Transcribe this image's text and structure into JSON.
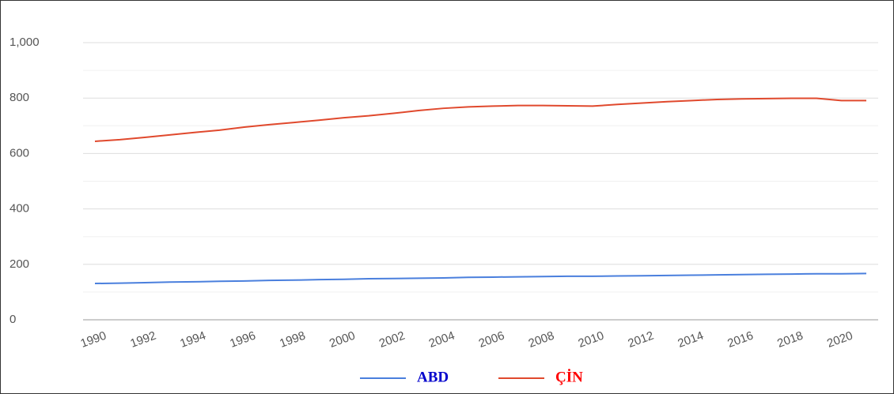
{
  "chart_data": {
    "type": "line",
    "x": [
      1990,
      1991,
      1992,
      1993,
      1994,
      1995,
      1996,
      1997,
      1998,
      1999,
      2000,
      2001,
      2002,
      2003,
      2004,
      2005,
      2006,
      2007,
      2008,
      2009,
      2010,
      2011,
      2012,
      2013,
      2014,
      2015,
      2016,
      2017,
      2018,
      2019,
      2020,
      2021
    ],
    "series": [
      {
        "name": "ABD",
        "color": "#4a7fdd",
        "label_color": "#0000cc",
        "values": [
          131,
          132,
          134,
          136,
          137,
          139,
          140,
          142,
          143,
          145,
          146,
          148,
          149,
          150,
          151,
          153,
          154,
          155,
          156,
          157,
          157,
          158,
          159,
          160,
          161,
          162,
          163,
          164,
          165,
          166,
          166,
          167
        ]
      },
      {
        "name": "ÇİN",
        "color": "#e0492d",
        "label_color": "#ff0000",
        "values": [
          644,
          650,
          658,
          667,
          676,
          684,
          695,
          704,
          712,
          720,
          729,
          736,
          745,
          755,
          763,
          768,
          771,
          773,
          773,
          772,
          771,
          777,
          782,
          787,
          791,
          795,
          797,
          798,
          799,
          799,
          791,
          791
        ]
      }
    ],
    "xlim": [
      1990,
      2021
    ],
    "xticks": [
      1990,
      1992,
      1994,
      1996,
      1998,
      2000,
      2002,
      2004,
      2006,
      2008,
      2010,
      2012,
      2014,
      2016,
      2018,
      2020
    ],
    "ylim": [
      0,
      1000
    ],
    "yticks": [
      0,
      200,
      400,
      600,
      800,
      {
        "value": 1000,
        "label": "1,000"
      }
    ],
    "minor_yticks": [
      100,
      300,
      500,
      700,
      900
    ],
    "grid": true,
    "legend": "bottom"
  }
}
